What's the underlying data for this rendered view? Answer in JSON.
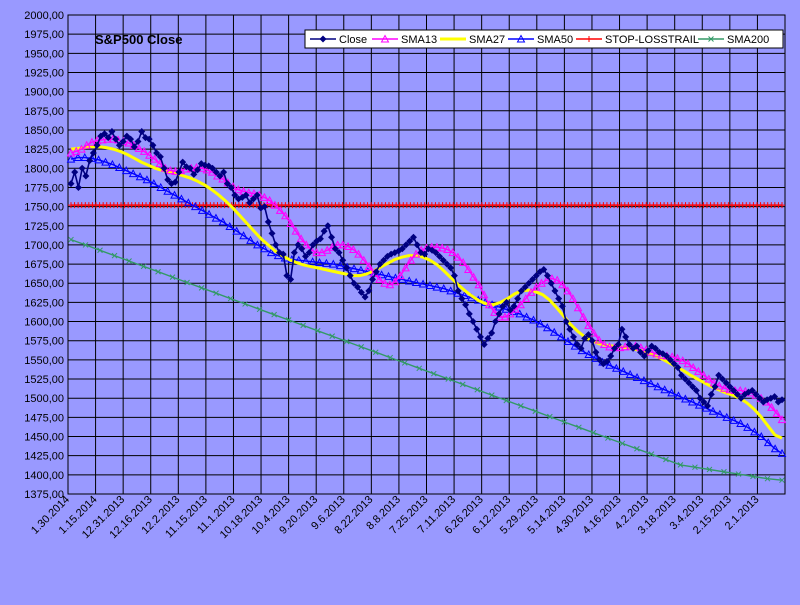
{
  "chart_data": {
    "type": "line",
    "title": "S&P500 Close",
    "xlabel": "",
    "ylabel": "",
    "ylim": [
      1375,
      2000
    ],
    "ytick_step": 25,
    "grid": true,
    "legend_position": "top-right",
    "x_tick_labels": [
      "1.30.2014",
      "1.15.2014",
      "12.31.2013",
      "12.16.2013",
      "12.2.2013",
      "11.15.2013",
      "11.1.2013",
      "10.18.2013",
      "10.4.2013",
      "9.20.2013",
      "9.6.2013",
      "8.22.2013",
      "8.8.2013",
      "7.25.2013",
      "7.11.2013",
      "6.26.2013",
      "6.12.2013",
      "5.29.2013",
      "5.14.2013",
      "4.30.2013",
      "4.16.2013",
      "4.2.2013",
      "3.18.2013",
      "3.4.2013",
      "2.15.2013",
      "2.1.2013"
    ],
    "colors": {
      "plot_bg": "#9999ff",
      "page_bg": "#9999ff",
      "grid": "#000000",
      "legend_bg": "#ffffff",
      "Close": "#000080",
      "SMA13": "#ff00ff",
      "SMA27": "#ffff00",
      "SMA50": "#0000ff",
      "STOP-LOSSTRAIL": "#ff0000",
      "SMA200": "#339966"
    },
    "series": [
      {
        "name": "Close",
        "marker": "diamond",
        "values": [
          1780,
          1795,
          1775,
          1800,
          1790,
          1810,
          1820,
          1830,
          1842,
          1845,
          1840,
          1848,
          1838,
          1830,
          1835,
          1842,
          1838,
          1828,
          1835,
          1848,
          1840,
          1838,
          1830,
          1820,
          1815,
          1800,
          1785,
          1780,
          1782,
          1795,
          1808,
          1802,
          1800,
          1792,
          1798,
          1806,
          1804,
          1803,
          1800,
          1795,
          1790,
          1795,
          1780,
          1775,
          1765,
          1760,
          1762,
          1765,
          1755,
          1760,
          1765,
          1748,
          1750,
          1730,
          1715,
          1700,
          1690,
          1688,
          1660,
          1655,
          1690,
          1700,
          1695,
          1685,
          1690,
          1700,
          1705,
          1708,
          1718,
          1725,
          1710,
          1695,
          1690,
          1680,
          1670,
          1660,
          1650,
          1645,
          1638,
          1632,
          1640,
          1655,
          1665,
          1675,
          1680,
          1685,
          1688,
          1690,
          1692,
          1695,
          1700,
          1705,
          1710,
          1700,
          1690,
          1688,
          1695,
          1693,
          1690,
          1685,
          1680,
          1675,
          1670,
          1660,
          1640,
          1630,
          1622,
          1610,
          1600,
          1590,
          1580,
          1570,
          1578,
          1585,
          1600,
          1610,
          1620,
          1625,
          1615,
          1620,
          1630,
          1640,
          1645,
          1650,
          1655,
          1660,
          1665,
          1668,
          1660,
          1650,
          1640,
          1630,
          1620,
          1600,
          1590,
          1580,
          1570,
          1565,
          1578,
          1583,
          1575,
          1560,
          1550,
          1545,
          1548,
          1555,
          1565,
          1570,
          1590,
          1580,
          1570,
          1565,
          1568,
          1560,
          1555,
          1562,
          1568,
          1565,
          1560,
          1558,
          1555,
          1550,
          1545,
          1540,
          1530,
          1525,
          1520,
          1515,
          1510,
          1500,
          1495,
          1490,
          1505,
          1515,
          1530,
          1525,
          1520,
          1515,
          1510,
          1505,
          1500,
          1505,
          1508,
          1510,
          1505,
          1500,
          1495,
          1498,
          1500,
          1502,
          1495,
          1498
        ]
      },
      {
        "name": "SMA13",
        "marker": "triangle",
        "values": [
          1820,
          1822,
          1825,
          1830,
          1834,
          1836,
          1837,
          1838,
          1838,
          1837,
          1835,
          1833,
          1830,
          1826,
          1822,
          1817,
          1812,
          1806,
          1800,
          1797,
          1796,
          1797,
          1799,
          1800,
          1801,
          1800,
          1798,
          1795,
          1790,
          1786,
          1781,
          1776,
          1772,
          1770,
          1768,
          1767,
          1765,
          1762,
          1758,
          1752,
          1745,
          1738,
          1728,
          1718,
          1708,
          1700,
          1693,
          1690,
          1690,
          1693,
          1697,
          1700,
          1700,
          1698,
          1694,
          1688,
          1680,
          1672,
          1663,
          1655,
          1650,
          1648,
          1652,
          1660,
          1670,
          1680,
          1688,
          1693,
          1696,
          1697,
          1697,
          1696,
          1694,
          1690,
          1684,
          1677,
          1668,
          1658,
          1648,
          1635,
          1622,
          1612,
          1606,
          1606,
          1610,
          1616,
          1622,
          1630,
          1638,
          1645,
          1650,
          1654,
          1656,
          1654,
          1648,
          1640,
          1630,
          1618,
          1606,
          1595,
          1585,
          1576,
          1570,
          1567,
          1566,
          1566,
          1567,
          1568,
          1568,
          1566,
          1563,
          1560,
          1558,
          1556,
          1555,
          1554,
          1552,
          1549,
          1545,
          1540,
          1535,
          1530,
          1525,
          1520,
          1516,
          1513,
          1511,
          1510,
          1510,
          1509,
          1507,
          1504,
          1500,
          1495,
          1488,
          1480,
          1472
        ]
      },
      {
        "name": "SMA27",
        "marker": "none",
        "values": [
          1825,
          1826,
          1827,
          1828,
          1828,
          1827,
          1825,
          1822,
          1818,
          1813,
          1808,
          1804,
          1800,
          1797,
          1795,
          1793,
          1790,
          1787,
          1783,
          1778,
          1772,
          1765,
          1757,
          1748,
          1738,
          1728,
          1718,
          1708,
          1700,
          1692,
          1686,
          1681,
          1677,
          1674,
          1672,
          1670,
          1668,
          1666,
          1664,
          1662,
          1660,
          1660,
          1662,
          1666,
          1671,
          1676,
          1681,
          1684,
          1686,
          1686,
          1684,
          1680,
          1674,
          1666,
          1657,
          1648,
          1640,
          1633,
          1627,
          1623,
          1622,
          1625,
          1630,
          1636,
          1640,
          1641,
          1639,
          1635,
          1628,
          1618,
          1607,
          1596,
          1587,
          1580,
          1575,
          1571,
          1569,
          1568,
          1567,
          1566,
          1564,
          1562,
          1559,
          1555,
          1551,
          1546,
          1541,
          1536,
          1530,
          1525,
          1520,
          1515,
          1511,
          1507,
          1504,
          1500,
          1494,
          1486,
          1476,
          1464,
          1452,
          1448
        ]
      },
      {
        "name": "SMA50",
        "marker": "triangle",
        "values": [
          1812,
          1814,
          1814,
          1813,
          1811,
          1808,
          1805,
          1801,
          1797,
          1793,
          1789,
          1785,
          1780,
          1775,
          1770,
          1765,
          1760,
          1755,
          1750,
          1745,
          1740,
          1735,
          1730,
          1724,
          1718,
          1712,
          1706,
          1700,
          1695,
          1690,
          1686,
          1683,
          1681,
          1680,
          1679,
          1678,
          1677,
          1676,
          1675,
          1673,
          1671,
          1669,
          1667,
          1665,
          1663,
          1661,
          1659,
          1657,
          1655,
          1653,
          1651,
          1649,
          1647,
          1645,
          1643,
          1640,
          1637,
          1634,
          1631,
          1628,
          1625,
          1622,
          1619,
          1616,
          1613,
          1610,
          1606,
          1602,
          1597,
          1592,
          1586,
          1580,
          1574,
          1568,
          1562,
          1557,
          1552,
          1547,
          1543,
          1539,
          1535,
          1531,
          1527,
          1523,
          1519,
          1515,
          1511,
          1507,
          1503,
          1499,
          1495,
          1491,
          1487,
          1483,
          1479,
          1475,
          1471,
          1467,
          1462,
          1456,
          1450,
          1442,
          1434,
          1428
        ]
      },
      {
        "name": "STOP-LOSSTRAIL",
        "marker": "plus",
        "values": [
          1752,
          1752,
          1752,
          1752,
          1752,
          1752,
          1752,
          1752,
          1752,
          1752,
          1752,
          1752,
          1752,
          1752,
          1752,
          1752,
          1752,
          1752,
          1752,
          1752,
          1752,
          1752,
          1752,
          1752,
          1752,
          1752,
          1752,
          1752,
          1752,
          1752,
          1752,
          1752,
          1752,
          1752,
          1752,
          1752,
          1752,
          1752,
          1752,
          1752,
          1752,
          1752,
          1752,
          1752,
          1752,
          1752,
          1752,
          1752,
          1752,
          1752,
          1752,
          1752,
          1752,
          1752,
          1752,
          1752,
          1752,
          1752,
          1752,
          1752,
          1752,
          1752,
          1752,
          1752,
          1752,
          1752,
          1752,
          1752,
          1752,
          1752,
          1752,
          1752,
          1752,
          1752,
          1752,
          1752,
          1752,
          1752,
          1752,
          1752,
          1752,
          1752,
          1752,
          1752,
          1752,
          1752,
          1752,
          1752,
          1752,
          1752,
          1752,
          1752,
          1752,
          1752,
          1752,
          1752,
          1752,
          1752,
          1752,
          1752,
          1752,
          1752,
          1752,
          1752,
          1752,
          1752,
          1752,
          1752,
          1752,
          1752,
          1752,
          1752,
          1752,
          1752,
          1752,
          1752,
          1752,
          1752,
          1752,
          1752,
          1752,
          1752,
          1752,
          1752,
          1752,
          1752,
          1752,
          1752,
          1752,
          1752,
          1752,
          1752,
          1752,
          1752,
          1752,
          1752,
          1752,
          1752,
          1752,
          1752,
          1752,
          1752,
          1752,
          1752,
          1752,
          1752,
          1752,
          1752,
          1752,
          1752,
          1752,
          1752,
          1752,
          1752,
          1752,
          1752,
          1752,
          1752,
          1752,
          1752,
          1752,
          1752,
          1752,
          1752,
          1752,
          1752,
          1752,
          1752,
          1752,
          1752,
          1752,
          1752,
          1752,
          1752,
          1752,
          1752,
          1752,
          1752,
          1752,
          1752,
          1752,
          1752,
          1752,
          1752,
          1752,
          1752,
          1752,
          1752,
          1752,
          1752,
          1752,
          1752,
          1752,
          1752,
          1752,
          1752,
          1752,
          1752,
          1752,
          1752
        ]
      },
      {
        "name": "SMA200",
        "marker": "x",
        "values": [
          1707,
          1700,
          1693,
          1686,
          1679,
          1672,
          1665,
          1658,
          1651,
          1644,
          1637,
          1630,
          1623,
          1616,
          1609,
          1602,
          1595,
          1588,
          1581,
          1574,
          1567,
          1560,
          1553,
          1546,
          1539,
          1532,
          1525,
          1518,
          1511,
          1504,
          1497,
          1490,
          1483,
          1476,
          1469,
          1462,
          1455,
          1448,
          1441,
          1434,
          1427,
          1420,
          1413,
          1410,
          1407,
          1404,
          1401,
          1398,
          1395,
          1393
        ]
      }
    ]
  }
}
